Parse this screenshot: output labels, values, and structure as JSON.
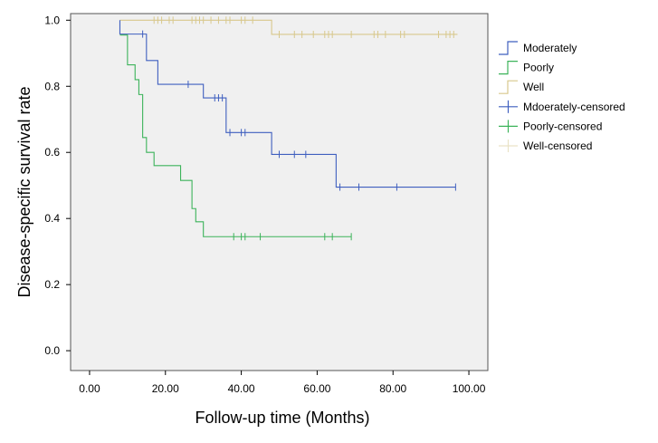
{
  "chart_data": {
    "type": "line",
    "subtype": "kaplan-meier-step",
    "xlabel": "Follow-up time (Months)",
    "ylabel": "Disease-specific survival rate",
    "xlim": [
      -5,
      105
    ],
    "ylim": [
      -0.06,
      1.02
    ],
    "x_ticks": [
      0,
      20,
      40,
      60,
      80,
      100
    ],
    "x_tick_labels": [
      "0.00",
      "20.00",
      "40.00",
      "60.00",
      "80.00",
      "100.00"
    ],
    "y_ticks": [
      0.0,
      0.2,
      0.4,
      0.6,
      0.8,
      1.0
    ],
    "y_tick_labels": [
      "0.0",
      "0.2",
      "0.4",
      "0.6",
      "0.8",
      "1.0"
    ],
    "grid": false,
    "legend_position": "right",
    "plot_background": "#f0f0f0",
    "series": [
      {
        "name": "Moderately",
        "color": "#3f5fbf",
        "steps": [
          [
            8,
            1.0
          ],
          [
            8,
            0.958
          ],
          [
            15,
            0.878
          ],
          [
            18,
            0.806
          ],
          [
            30,
            0.765
          ],
          [
            36,
            0.66
          ],
          [
            48,
            0.594
          ],
          [
            65,
            0.495
          ],
          [
            96.5,
            0.495
          ]
        ],
        "censored_name": "Mdoerately-censored",
        "censored": [
          [
            14,
            0.958
          ],
          [
            26,
            0.806
          ],
          [
            33,
            0.765
          ],
          [
            34,
            0.765
          ],
          [
            35,
            0.765
          ],
          [
            37,
            0.66
          ],
          [
            40,
            0.66
          ],
          [
            41,
            0.66
          ],
          [
            50,
            0.594
          ],
          [
            54,
            0.594
          ],
          [
            57,
            0.594
          ],
          [
            66,
            0.495
          ],
          [
            71,
            0.495
          ],
          [
            81,
            0.495
          ],
          [
            96.5,
            0.495
          ]
        ]
      },
      {
        "name": "Poorly",
        "color": "#3cb35a",
        "steps": [
          [
            8,
            0.955
          ],
          [
            10,
            0.865
          ],
          [
            12,
            0.82
          ],
          [
            13,
            0.775
          ],
          [
            14,
            0.645
          ],
          [
            15,
            0.6
          ],
          [
            17,
            0.56
          ],
          [
            24,
            0.515
          ],
          [
            27,
            0.43
          ],
          [
            28,
            0.39
          ],
          [
            30,
            0.345
          ],
          [
            69,
            0.345
          ]
        ],
        "censored_name": "Poorly-censored",
        "censored": [
          [
            38,
            0.345
          ],
          [
            40,
            0.345
          ],
          [
            41,
            0.345
          ],
          [
            45,
            0.345
          ],
          [
            62,
            0.345
          ],
          [
            64,
            0.345
          ],
          [
            69,
            0.345
          ]
        ]
      },
      {
        "name": "Well",
        "color": "#d8c88c",
        "steps": [
          [
            8,
            1.0
          ],
          [
            48,
            0.957
          ],
          [
            97,
            0.957
          ]
        ],
        "censored_name": "Well-censored",
        "censored": [
          [
            17,
            1.0
          ],
          [
            18,
            1.0
          ],
          [
            19,
            1.0
          ],
          [
            21,
            1.0
          ],
          [
            22,
            1.0
          ],
          [
            27,
            1.0
          ],
          [
            28,
            1.0
          ],
          [
            29,
            1.0
          ],
          [
            30,
            1.0
          ],
          [
            32,
            1.0
          ],
          [
            34,
            1.0
          ],
          [
            36,
            1.0
          ],
          [
            37,
            1.0
          ],
          [
            40,
            1.0
          ],
          [
            41,
            1.0
          ],
          [
            43,
            1.0
          ],
          [
            50,
            0.957
          ],
          [
            54,
            0.957
          ],
          [
            56,
            0.957
          ],
          [
            59,
            0.957
          ],
          [
            62,
            0.957
          ],
          [
            63,
            0.957
          ],
          [
            64,
            0.957
          ],
          [
            69,
            0.957
          ],
          [
            75,
            0.957
          ],
          [
            76,
            0.957
          ],
          [
            78,
            0.957
          ],
          [
            82,
            0.957
          ],
          [
            83,
            0.957
          ],
          [
            92,
            0.957
          ],
          [
            94,
            0.957
          ],
          [
            95,
            0.957
          ],
          [
            96,
            0.957
          ]
        ]
      }
    ],
    "legend": [
      {
        "label": "Moderately",
        "symbol": "step",
        "color": "#3f5fbf"
      },
      {
        "label": "Poorly",
        "symbol": "step",
        "color": "#3cb35a"
      },
      {
        "label": "Well",
        "symbol": "step",
        "color": "#d8c88c"
      },
      {
        "label": "Mdoerately-censored",
        "symbol": "cross",
        "color": "#3f5fbf"
      },
      {
        "label": "Poorly-censored",
        "symbol": "cross",
        "color": "#3cb35a"
      },
      {
        "label": "Well-censored",
        "symbol": "cross",
        "color": "#e9e3c6"
      }
    ]
  }
}
